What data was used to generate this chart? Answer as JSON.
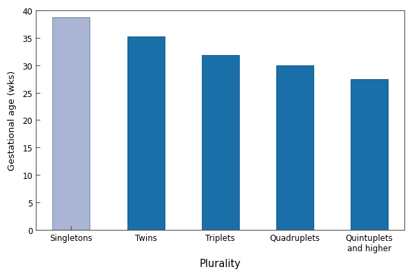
{
  "categories": [
    "Singletons",
    "Twins",
    "Triplets",
    "Quadruplets",
    "Quintuplets\nand higher"
  ],
  "values": [
    38.8,
    35.2,
    31.8,
    30.0,
    27.4
  ],
  "bar_colors": [
    "#aab4d4",
    "#1a6fa8",
    "#1a6fa8",
    "#1a6fa8",
    "#1a6fa8"
  ],
  "bar_edgecolors": [
    "#7a8ab0",
    "#155e90",
    "#155e90",
    "#155e90",
    "#155e90"
  ],
  "xlabel": "Plurality",
  "ylabel": "Gestational age (wks)",
  "ylim": [
    0,
    40
  ],
  "yticks": [
    0,
    5,
    10,
    15,
    20,
    25,
    30,
    35,
    40
  ],
  "background_color": "#ffffff",
  "bar_width": 0.5
}
